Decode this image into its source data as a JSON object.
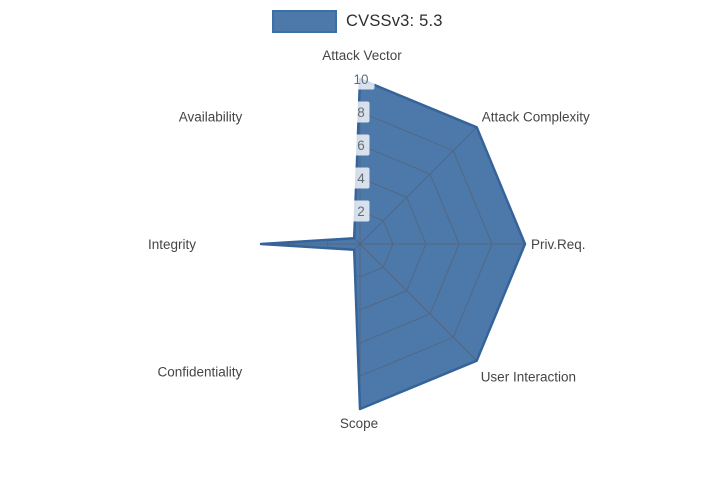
{
  "legend": {
    "label": "CVSSv3: 5.3"
  },
  "colors": {
    "background": "#ffffff",
    "series_fill": "#4d79aa",
    "series_outline": "#35639a",
    "legend_swatch_fill": "#4d79aa",
    "legend_swatch_border": "#3a6fa8",
    "grid_line": "#566379",
    "tick_text": "#636e7c",
    "tick_box_bg": "rgba(255,255,255,0.78)",
    "axis_label_text": "#454545",
    "legend_text": "#2e2e2e"
  },
  "chart_data": {
    "type": "radar",
    "title": "",
    "categories": [
      "Attack Vector",
      "Attack Complexity",
      "Priv.Req.",
      "User Interaction",
      "Scope",
      "Confidentiality",
      "Integrity",
      "Availability"
    ],
    "series": [
      {
        "name": "CVSSv3: 5.3",
        "values": [
          10,
          10,
          10,
          10,
          10,
          0.5,
          6,
          0.5
        ]
      }
    ],
    "rlim": [
      0,
      10
    ],
    "ticks": [
      2,
      4,
      6,
      8,
      10
    ],
    "tick_labels": [
      "2",
      "4",
      "6",
      "8",
      "10"
    ],
    "start_axis": "top",
    "direction": "clockwise",
    "legend_position": "top-center",
    "grid": "web (rings + spokes) visible only inside filled polygon"
  }
}
